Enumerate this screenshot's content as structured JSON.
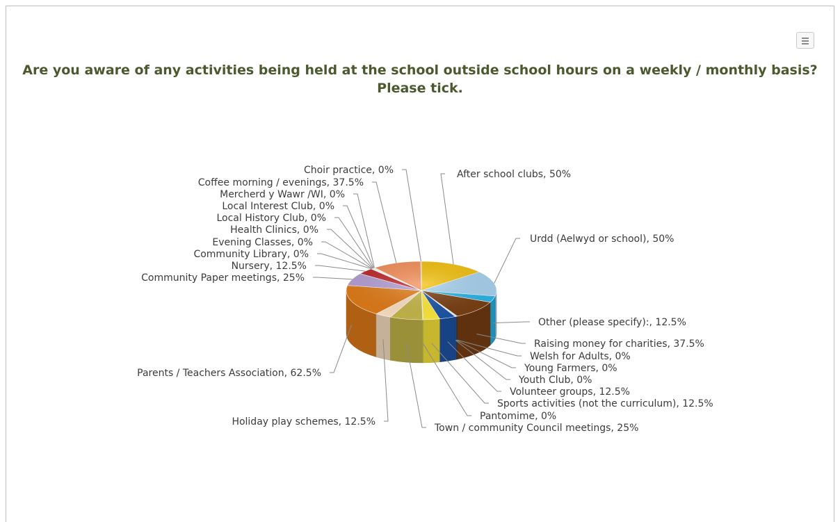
{
  "menu": {
    "icon": "menu-icon"
  },
  "chart_data": {
    "type": "pie",
    "title": "Are you aware of any activities being held at the school outside school hours on a weekly / monthly basis? Please tick.",
    "unit": "%",
    "slices": [
      {
        "label": "After school clubs",
        "value": 50,
        "color": "#f4c20d"
      },
      {
        "label": "Urdd (Aelwyd or school)",
        "value": 50,
        "color": "#a8d3f0"
      },
      {
        "label": "Other (please specify):",
        "value": 12.5,
        "color": "#29b6e8"
      },
      {
        "label": "Raising money for charities",
        "value": 37.5,
        "color": "#7a3f12"
      },
      {
        "label": "Welsh for Adults",
        "value": 0,
        "color": "#5a3a20"
      },
      {
        "label": "Young Farmers",
        "value": 0,
        "color": "#304f7a"
      },
      {
        "label": "Youth Club",
        "value": 0,
        "color": "#2a5fa8"
      },
      {
        "label": "Volunteer groups",
        "value": 12.5,
        "color": "#1d55a8"
      },
      {
        "label": "Sports activities (not the curriculum)",
        "value": 12.5,
        "color": "#ffea3b"
      },
      {
        "label": "Pantomime",
        "value": 0,
        "color": "#d9e04a"
      },
      {
        "label": "Town / community Council meetings",
        "value": 25,
        "color": "#c7b84a"
      },
      {
        "label": "Holiday play schemes",
        "value": 12.5,
        "color": "#fde2c4"
      },
      {
        "label": "Parents / Teachers Association",
        "value": 62.5,
        "color": "#e27b17"
      },
      {
        "label": "Community Paper meetings",
        "value": 25,
        "color": "#b7a0d6"
      },
      {
        "label": "Nursery",
        "value": 12.5,
        "color": "#c0282a"
      },
      {
        "label": "Community Library",
        "value": 0,
        "color": "#cfcfcf"
      },
      {
        "label": "Evening Classes",
        "value": 0,
        "color": "#9fc3a0"
      },
      {
        "label": "Health Clinics",
        "value": 0,
        "color": "#e8e8e8"
      },
      {
        "label": "Local History Club",
        "value": 0,
        "color": "#dddddd"
      },
      {
        "label": "Local Interest Club",
        "value": 0,
        "color": "#d0d0d0"
      },
      {
        "label": "Mercherd y Wawr /WI",
        "value": 0,
        "color": "#c4c4c4"
      },
      {
        "label": "Coffee morning / evenings",
        "value": 37.5,
        "color": "#f5905a"
      },
      {
        "label": "Choir practice",
        "value": 0,
        "color": "#f2b36a"
      }
    ],
    "legend": "none"
  }
}
